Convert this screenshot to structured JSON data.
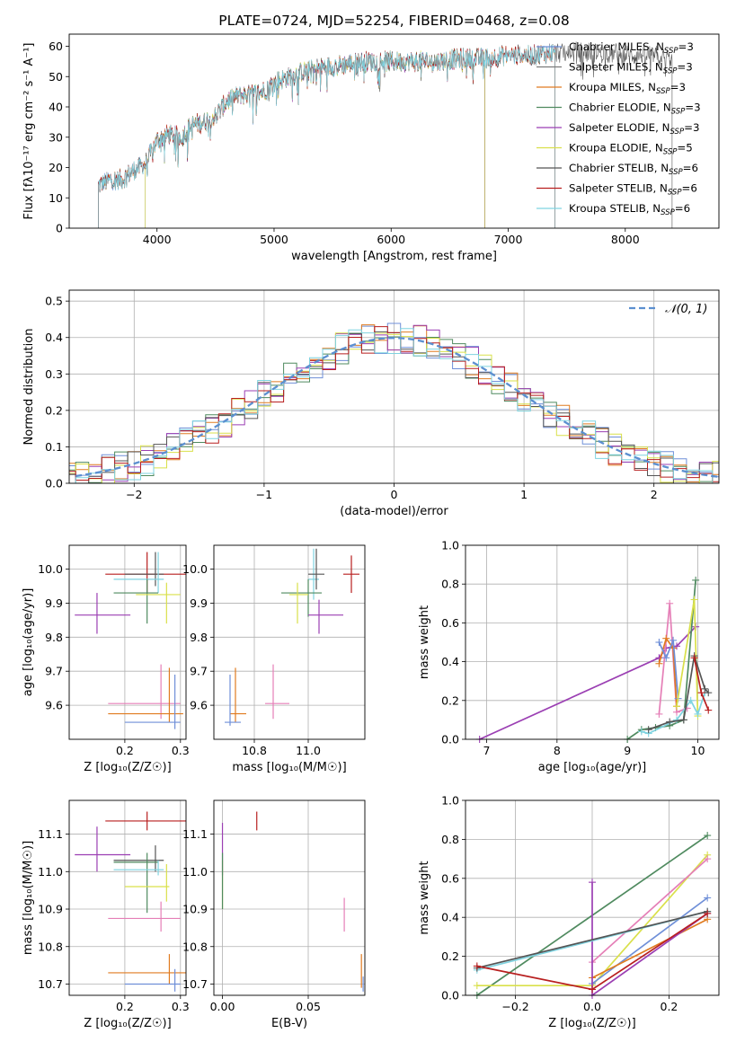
{
  "colors": {
    "Chabrier MILES": "#6f8fd8",
    "Salpeter MILES": "#7a7a7a",
    "Kroupa MILES": "#e07b20",
    "Chabrier ELODIE": "#4f8a5f",
    "Salpeter ELODIE": "#9b3fb3",
    "Kroupa ELODIE": "#d9e04a",
    "Chabrier STELIB": "#555555",
    "Salpeter STELIB": "#b81f1f",
    "Kroupa STELIB": "#7fd3e0",
    "pink": "#e57fb7",
    "gauss": "#5b8fd0"
  },
  "chart_data": [
    {
      "type": "line",
      "title": "PLATE=0724, MJD=52254, FIBERID=0468, z=0.08",
      "xlabel": "wavelength [Angstrom, rest frame]",
      "ylabel": "Flux [fλ10⁻¹⁷ erg cm⁻² s⁻¹ A⁻¹]",
      "xlim": [
        3250,
        8800
      ],
      "ylim": [
        0,
        64
      ],
      "xticks": [
        "4000",
        "5000",
        "6000",
        "7000",
        "8000"
      ],
      "yticks": [
        "0",
        "10",
        "20",
        "30",
        "40",
        "50",
        "60"
      ],
      "legend_position": "top-right",
      "spectrum_knots": [
        [
          3500,
          14
        ],
        [
          3600,
          16
        ],
        [
          3700,
          16
        ],
        [
          3800,
          19
        ],
        [
          3900,
          21
        ],
        [
          4000,
          29
        ],
        [
          4100,
          31
        ],
        [
          4200,
          30
        ],
        [
          4300,
          34
        ],
        [
          4400,
          35
        ],
        [
          4500,
          37
        ],
        [
          4600,
          42
        ],
        [
          4700,
          44
        ],
        [
          4800,
          44
        ],
        [
          4900,
          45
        ],
        [
          5000,
          48
        ],
        [
          5200,
          51
        ],
        [
          5400,
          53
        ],
        [
          5600,
          54
        ],
        [
          5800,
          55
        ],
        [
          6000,
          55
        ],
        [
          6200,
          55
        ],
        [
          6400,
          55
        ],
        [
          6600,
          56
        ],
        [
          6800,
          56
        ],
        [
          7000,
          57
        ],
        [
          7200,
          57
        ],
        [
          7400,
          58
        ],
        [
          7600,
          58
        ],
        [
          7800,
          58
        ],
        [
          8000,
          57
        ],
        [
          8200,
          57
        ],
        [
          8400,
          56
        ]
      ],
      "series": [
        {
          "legend": "Chabrier MILES, N",
          "n": "=3",
          "key": "Chabrier MILES",
          "start": 3500,
          "end": 7400
        },
        {
          "legend": "Salpeter MILES, N",
          "n": "=3",
          "key": "Salpeter MILES",
          "start": 3500,
          "end": 7400
        },
        {
          "legend": "Kroupa MILES, N",
          "n": "=3",
          "key": "Kroupa MILES",
          "start": 3500,
          "end": 7400
        },
        {
          "legend": "Chabrier ELODIE, N",
          "n": "=3",
          "key": "Chabrier ELODIE",
          "start": 3900,
          "end": 6800
        },
        {
          "legend": "Salpeter ELODIE, N",
          "n": "=3",
          "key": "Salpeter ELODIE",
          "start": 3900,
          "end": 6800
        },
        {
          "legend": "Kroupa ELODIE, N",
          "n": "=5",
          "key": "Kroupa ELODIE",
          "start": 3900,
          "end": 6800
        },
        {
          "legend": "Chabrier STELIB, N",
          "n": "=6",
          "key": "Chabrier STELIB",
          "start": 3500,
          "end": 8400
        },
        {
          "legend": "Salpeter STELIB, N",
          "n": "=6",
          "key": "Salpeter STELIB",
          "start": 3500,
          "end": 7400
        },
        {
          "legend": "Kroupa STELIB, N",
          "n": "=6",
          "key": "Kroupa STELIB",
          "start": 3500,
          "end": 7400
        }
      ]
    },
    {
      "type": "area",
      "xlabel": "(data-model)/error",
      "ylabel": "Normed distribution",
      "xlim": [
        -2.5,
        2.5
      ],
      "ylim": [
        0,
        0.53
      ],
      "xticks": [
        "−2",
        "−1",
        "0",
        "1",
        "2"
      ],
      "yticks": [
        "0.0",
        "0.1",
        "0.2",
        "0.3",
        "0.4",
        "0.5"
      ],
      "legend": "𝒩(0, 1)",
      "legend_position": "top-right",
      "bin_width": 0.1,
      "histogram_series": [
        "Chabrier MILES",
        "Kroupa MILES",
        "Chabrier ELODIE",
        "Salpeter ELODIE",
        "Kroupa ELODIE",
        "Chabrier STELIB",
        "Salpeter STELIB",
        "Kroupa STELIB"
      ]
    },
    {
      "type": "scatter",
      "xlabel": "Z [log₁₀(Z/Z☉)]",
      "ylabel": "age  [log₁₀(age/yr)]",
      "xlim": [
        0.1,
        0.31
      ],
      "ylim": [
        9.5,
        10.07
      ],
      "xticks": [
        "0.2",
        "0.3"
      ],
      "yticks": [
        "9.6",
        "9.7",
        "9.8",
        "9.9",
        "10.0"
      ],
      "points": [
        {
          "key": "Salpeter STELIB",
          "x": 0.24,
          "y": 9.985,
          "xl": 0.165,
          "xh": 0.31,
          "yl": 9.93,
          "yh": 10.05
        },
        {
          "key": "Chabrier STELIB",
          "x": 0.255,
          "y": 9.985,
          "xl": 0.2,
          "xh": 0.27,
          "yl": 9.95,
          "yh": 10.05
        },
        {
          "key": "Kroupa STELIB",
          "x": 0.26,
          "y": 9.97,
          "xl": 0.18,
          "xh": 0.27,
          "yl": 9.93,
          "yh": 10.05
        },
        {
          "key": "Chabrier ELODIE",
          "x": 0.24,
          "y": 9.93,
          "xl": 0.18,
          "xh": 0.26,
          "yl": 9.84,
          "yh": 9.97
        },
        {
          "key": "Kroupa ELODIE",
          "x": 0.275,
          "y": 9.925,
          "xl": 0.22,
          "xh": 0.3,
          "yl": 9.84,
          "yh": 9.96
        },
        {
          "key": "Salpeter ELODIE",
          "x": 0.15,
          "y": 9.865,
          "xl": 0.11,
          "xh": 0.21,
          "yl": 9.81,
          "yh": 9.93
        },
        {
          "key": "pink",
          "x": 0.265,
          "y": 9.605,
          "xl": 0.17,
          "xh": 0.3,
          "yl": 9.56,
          "yh": 9.72
        },
        {
          "key": "Kroupa MILES",
          "x": 0.28,
          "y": 9.575,
          "xl": 0.17,
          "xh": 0.305,
          "yl": 9.55,
          "yh": 9.71
        },
        {
          "key": "Chabrier MILES",
          "x": 0.29,
          "y": 9.55,
          "xl": 0.2,
          "xh": 0.3,
          "yl": 9.53,
          "yh": 9.69
        }
      ]
    },
    {
      "type": "scatter",
      "xlabel": "mass [log₁₀(M/M☉)]",
      "ylabel": "",
      "xlim": [
        10.65,
        11.21
      ],
      "ylim": [
        9.5,
        10.07
      ],
      "xticks": [
        "10.8",
        "11.0"
      ],
      "yticks": [
        "9.6",
        "9.7",
        "9.8",
        "9.9",
        "10.0"
      ],
      "points": [
        {
          "key": "Salpeter STELIB",
          "x": 11.16,
          "y": 9.985,
          "xl": 11.13,
          "xh": 11.19,
          "yl": 9.93,
          "yh": 10.04
        },
        {
          "key": "Kroupa STELIB",
          "x": 11.02,
          "y": 9.97,
          "xl": 11.0,
          "xh": 11.04,
          "yl": 9.91,
          "yh": 10.06
        },
        {
          "key": "Chabrier STELIB",
          "x": 11.03,
          "y": 9.985,
          "xl": 11.0,
          "xh": 11.06,
          "yl": 9.94,
          "yh": 10.06
        },
        {
          "key": "Chabrier ELODIE",
          "x": 11.0,
          "y": 9.93,
          "xl": 10.9,
          "xh": 11.05,
          "yl": 9.86,
          "yh": 9.97
        },
        {
          "key": "Kroupa ELODIE",
          "x": 10.96,
          "y": 9.925,
          "xl": 10.93,
          "xh": 11.0,
          "yl": 9.84,
          "yh": 9.96
        },
        {
          "key": "Salpeter ELODIE",
          "x": 11.04,
          "y": 9.865,
          "xl": 11.0,
          "xh": 11.13,
          "yl": 9.81,
          "yh": 9.91
        },
        {
          "key": "pink",
          "x": 10.87,
          "y": 9.605,
          "xl": 10.84,
          "xh": 10.93,
          "yl": 9.56,
          "yh": 9.72
        },
        {
          "key": "Kroupa MILES",
          "x": 10.73,
          "y": 9.575,
          "xl": 10.71,
          "xh": 10.77,
          "yl": 9.55,
          "yh": 9.71
        },
        {
          "key": "Chabrier MILES",
          "x": 10.71,
          "y": 9.55,
          "xl": 10.69,
          "xh": 10.75,
          "yl": 9.54,
          "yh": 9.69
        }
      ]
    },
    {
      "type": "line",
      "xlabel": "age  [log₁₀(age/yr)]",
      "ylabel": "mass weight",
      "xlim": [
        6.7,
        10.3
      ],
      "ylim": [
        0,
        1.0
      ],
      "xticks": [
        "7",
        "8",
        "9",
        "10"
      ],
      "yticks": [
        "0.0",
        "0.2",
        "0.4",
        "0.6",
        "0.8",
        "1.0"
      ],
      "series": [
        {
          "key": "Salpeter ELODIE",
          "x": [
            6.9,
            9.45,
            9.55,
            9.7,
            9.97
          ],
          "y": [
            0.0,
            0.42,
            0.47,
            0.48,
            0.58
          ]
        },
        {
          "key": "Chabrier ELODIE",
          "x": [
            9.0,
            9.2,
            9.4,
            9.6,
            9.8,
            9.97
          ],
          "y": [
            0.0,
            0.05,
            0.06,
            0.07,
            0.1,
            0.82
          ]
        },
        {
          "key": "pink",
          "x": [
            9.45,
            9.6,
            9.7,
            9.85
          ],
          "y": [
            0.13,
            0.7,
            0.14,
            0.16
          ]
        },
        {
          "key": "Kroupa MILES",
          "x": [
            9.45,
            9.55,
            9.65,
            9.7
          ],
          "y": [
            0.39,
            0.52,
            0.47,
            0.17
          ]
        },
        {
          "key": "Chabrier MILES",
          "x": [
            9.45,
            9.55,
            9.65,
            9.72
          ],
          "y": [
            0.5,
            0.42,
            0.51,
            0.21
          ]
        },
        {
          "key": "Kroupa ELODIE",
          "x": [
            9.7,
            9.95,
            10.0
          ],
          "y": [
            0.17,
            0.72,
            0.12
          ]
        },
        {
          "key": "Kroupa STELIB",
          "x": [
            9.2,
            9.3,
            9.7,
            9.9,
            10.0,
            10.1
          ],
          "y": [
            0.04,
            0.03,
            0.1,
            0.2,
            0.13,
            0.24
          ]
        },
        {
          "key": "Chabrier STELIB",
          "x": [
            9.3,
            9.6,
            9.8,
            9.95,
            10.1,
            10.15
          ],
          "y": [
            0.05,
            0.09,
            0.1,
            0.43,
            0.26,
            0.24
          ]
        },
        {
          "key": "Salpeter STELIB",
          "x": [
            9.95,
            10.05,
            10.15
          ],
          "y": [
            0.42,
            0.24,
            0.15
          ]
        }
      ]
    },
    {
      "type": "scatter",
      "xlabel": "Z [log₁₀(Z/Z☉)]",
      "ylabel": "mass [log₁₀(M/M☉)]",
      "xlim": [
        0.1,
        0.31
      ],
      "ylim": [
        10.67,
        11.19
      ],
      "xticks": [
        "0.2",
        "0.3"
      ],
      "yticks": [
        "10.7",
        "10.8",
        "10.9",
        "11.0",
        "11.1"
      ],
      "points": [
        {
          "key": "Salpeter STELIB",
          "x": 0.24,
          "y": 11.135,
          "xl": 0.165,
          "xh": 0.31,
          "yl": 11.11,
          "yh": 11.16
        },
        {
          "key": "Salpeter ELODIE",
          "x": 0.15,
          "y": 11.045,
          "xl": 0.11,
          "xh": 0.21,
          "yl": 11.0,
          "yh": 11.12
        },
        {
          "key": "Chabrier STELIB",
          "x": 0.255,
          "y": 11.03,
          "xl": 0.18,
          "xh": 0.27,
          "yl": 11.0,
          "yh": 11.07
        },
        {
          "key": "Chabrier ELODIE",
          "x": 0.24,
          "y": 11.025,
          "xl": 0.18,
          "xh": 0.26,
          "yl": 10.89,
          "yh": 11.05
        },
        {
          "key": "Kroupa STELIB",
          "x": 0.26,
          "y": 11.005,
          "xl": 0.18,
          "xh": 0.27,
          "yl": 10.99,
          "yh": 11.03
        },
        {
          "key": "Kroupa ELODIE",
          "x": 0.275,
          "y": 10.96,
          "xl": 0.2,
          "xh": 0.28,
          "yl": 10.92,
          "yh": 11.02
        },
        {
          "key": "pink",
          "x": 0.265,
          "y": 10.875,
          "xl": 0.17,
          "xh": 0.3,
          "yl": 10.84,
          "yh": 10.92
        },
        {
          "key": "Kroupa MILES",
          "x": 0.28,
          "y": 10.73,
          "xl": 0.17,
          "xh": 0.31,
          "yl": 10.7,
          "yh": 10.78
        },
        {
          "key": "Chabrier MILES",
          "x": 0.29,
          "y": 10.7,
          "xl": 0.2,
          "xh": 0.3,
          "yl": 10.68,
          "yh": 10.74
        }
      ]
    },
    {
      "type": "scatter",
      "xlabel": "E(B-V)",
      "ylabel": "",
      "xlim": [
        -0.005,
        0.083
      ],
      "ylim": [
        10.67,
        11.19
      ],
      "xticks": [
        "0.00",
        "0.05"
      ],
      "yticks": [
        "10.7",
        "10.8",
        "10.9",
        "11.0",
        "11.1"
      ],
      "points": [
        {
          "key": "Salpeter ELODIE",
          "x": 0.0,
          "y": 11.05,
          "xl": 0.0,
          "xh": 0.0,
          "yl": 10.99,
          "yh": 11.13
        },
        {
          "key": "Kroupa ELODIE",
          "x": 0.0,
          "y": 10.96,
          "xl": 0.0,
          "xh": 0.0,
          "yl": 10.9,
          "yh": 11.03
        },
        {
          "key": "Chabrier ELODIE",
          "x": 0.0,
          "y": 10.98,
          "xl": 0.0,
          "xh": 0.0,
          "yl": 10.9,
          "yh": 11.05
        },
        {
          "key": "Salpeter STELIB",
          "x": 0.02,
          "y": 11.135,
          "xl": 0.02,
          "xh": 0.02,
          "yl": 11.11,
          "yh": 11.16
        },
        {
          "key": "pink",
          "x": 0.071,
          "y": 10.875,
          "xl": 0.071,
          "xh": 0.071,
          "yl": 10.84,
          "yh": 10.93
        },
        {
          "key": "Kroupa MILES",
          "x": 0.081,
          "y": 10.73,
          "xl": 0.081,
          "xh": 0.081,
          "yl": 10.69,
          "yh": 10.78
        },
        {
          "key": "Chabrier MILES",
          "x": 0.082,
          "y": 10.7,
          "xl": 0.082,
          "xh": 0.082,
          "yl": 10.68,
          "yh": 10.72
        }
      ]
    },
    {
      "type": "line",
      "xlabel": "Z [log₁₀(Z/Z☉)]",
      "ylabel": "mass weight",
      "xlim": [
        -0.33,
        0.33
      ],
      "ylim": [
        0,
        1.0
      ],
      "xticks": [
        "−0.2",
        "0.0",
        "0.2"
      ],
      "yticks": [
        "0.0",
        "0.2",
        "0.4",
        "0.6",
        "0.8",
        "1.0"
      ],
      "series": [
        {
          "key": "Chabrier ELODIE",
          "x": [
            -0.3,
            0.3
          ],
          "y": [
            0.0,
            0.82
          ]
        },
        {
          "key": "Kroupa ELODIE",
          "x": [
            -0.3,
            0.0,
            0.3
          ],
          "y": [
            0.05,
            0.05,
            0.72
          ]
        },
        {
          "key": "pink",
          "x": [
            0.0,
            0.3
          ],
          "y": [
            0.17,
            0.7
          ]
        },
        {
          "key": "Chabrier MILES",
          "x": [
            0.0,
            0.3
          ],
          "y": [
            0.06,
            0.5
          ]
        },
        {
          "key": "Kroupa MILES",
          "x": [
            0.0,
            0.3
          ],
          "y": [
            0.09,
            0.39
          ]
        },
        {
          "key": "Salpeter ELODIE",
          "x": [
            0.0,
            0.0,
            0.3
          ],
          "y": [
            0.58,
            0.0,
            0.42
          ]
        },
        {
          "key": "Kroupa STELIB",
          "x": [
            -0.3,
            0.3
          ],
          "y": [
            0.13,
            0.43
          ]
        },
        {
          "key": "Chabrier STELIB",
          "x": [
            -0.3,
            0.3
          ],
          "y": [
            0.14,
            0.43
          ]
        },
        {
          "key": "Salpeter STELIB",
          "x": [
            -0.3,
            0.0,
            0.3
          ],
          "y": [
            0.15,
            0.03,
            0.42
          ]
        }
      ]
    }
  ]
}
